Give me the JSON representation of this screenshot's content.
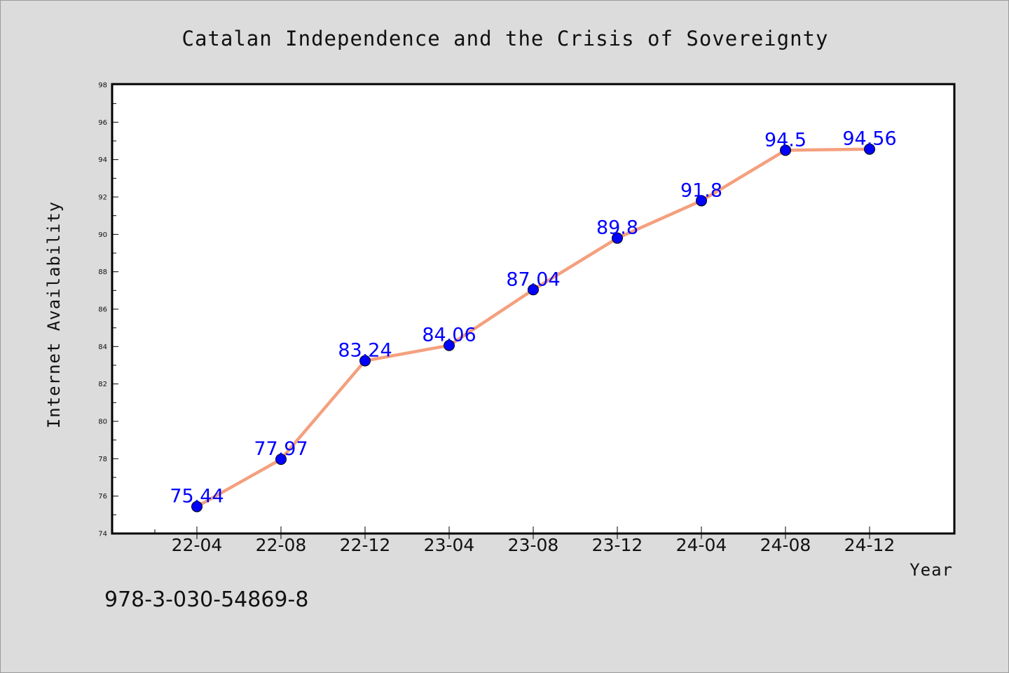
{
  "chart_data": {
    "type": "line",
    "title": "Catalan Independence and the Crisis of Sovereignty",
    "xlabel": "Year",
    "ylabel": "Internet Availability",
    "categories": [
      "22-04",
      "22-08",
      "22-12",
      "23-04",
      "23-08",
      "23-12",
      "24-04",
      "24-08",
      "24-12"
    ],
    "series": [
      {
        "values": [
          75.44,
          77.97,
          83.24,
          84.06,
          87.04,
          89.8,
          91.8,
          94.5,
          94.56
        ],
        "labels": [
          "75.44",
          "77.97",
          "83.24",
          "84.06",
          "87.04",
          "89.8",
          "91.8",
          "94.5",
          "94.56"
        ],
        "line_color": "#f4a07e",
        "marker_color": "#0000ff"
      }
    ],
    "ylim": [
      74,
      98
    ],
    "yticks": [
      "74",
      "76",
      "78",
      "80",
      "82",
      "84",
      "86",
      "88",
      "90",
      "92",
      "94",
      "96",
      "98"
    ],
    "grid": false,
    "legend": "none"
  },
  "footer": {
    "isbn": "978-3-030-54869-8"
  }
}
